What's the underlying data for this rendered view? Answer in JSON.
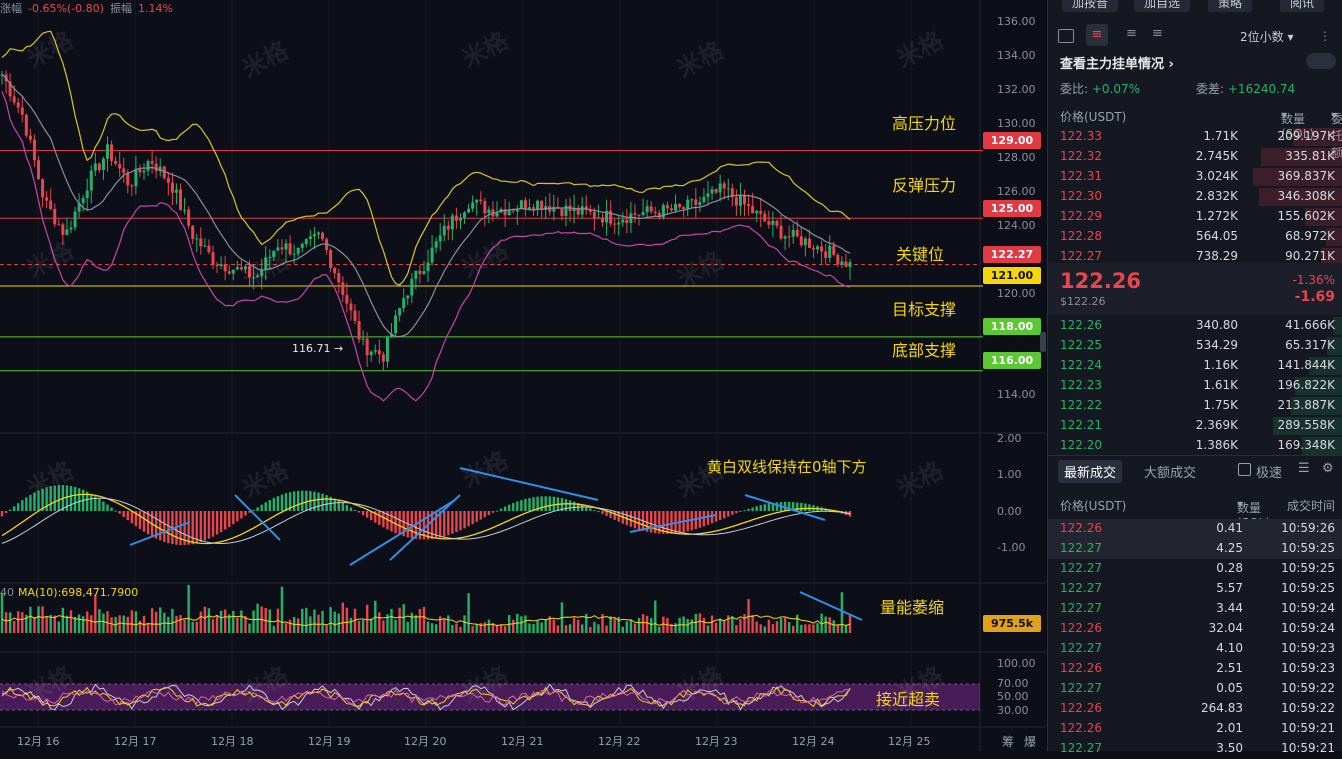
{
  "topbar": {
    "change_label": "涨幅",
    "change_value": "-0.65%(-0.80)",
    "amp_label": "振幅",
    "amp_value": "1.14%"
  },
  "watermark": "米格",
  "price_axis": {
    "ticks": [
      "136.00",
      "134.00",
      "132.00",
      "130.00",
      "128.00",
      "126.00",
      "124.00",
      "120.00",
      "114.00"
    ]
  },
  "levels": [
    {
      "label": "129.00",
      "color": "#e03a44",
      "annotation": "高压力位"
    },
    {
      "label": "125.00",
      "color": "#e03a44",
      "annotation": "反弹压力"
    },
    {
      "label": "122.27",
      "color": "#e03a44",
      "annotation": "关键位"
    },
    {
      "label": "121.00",
      "color": "#f5d60c",
      "annotation": ""
    },
    {
      "label": "118.00",
      "color": "#5ac733",
      "annotation": "目标支撑"
    },
    {
      "label": "116.00",
      "color": "#5ac733",
      "annotation": "底部支撑"
    }
  ],
  "low_marker": "116.71",
  "macd": {
    "ticks": [
      "2.00",
      "1.00",
      "0.00",
      "-1.00"
    ],
    "annotation": "黄白双线保持在0轴下方"
  },
  "volume": {
    "ma_label": "MA(10):698,471.7900",
    "left_tick": "40",
    "annotation": "量能萎缩",
    "current": "975.5k"
  },
  "rsi": {
    "ticks": [
      "100.00",
      "70.00",
      "50.00",
      "30.00"
    ],
    "annotation": "接近超卖"
  },
  "dates": [
    "12月 16",
    "12月 17",
    "12月 18",
    "12月 19",
    "12月 20",
    "12月 21",
    "12月 22",
    "12月 23",
    "12月 24",
    "12月 25"
  ],
  "bottom_icons": {
    "a": "筹",
    "b": "爆"
  },
  "panel": {
    "top_buttons": [
      "加按音",
      "加自选",
      "策略",
      "阅讯"
    ],
    "decimal_select": "2位小数",
    "title": "查看主力挂单情况",
    "ratio_label": "委比:",
    "ratio_value": "+0.07%",
    "diff_label": "委差:",
    "diff_value": "+16240.74",
    "book_headers": [
      "价格(USDT)",
      "数量 (SOL)",
      "委托额"
    ],
    "asks": [
      {
        "p": "122.33",
        "q": "1.71K",
        "v": "209.197K",
        "w": 0.5
      },
      {
        "p": "122.32",
        "q": "2.745K",
        "v": "335.81K",
        "w": 0.82
      },
      {
        "p": "122.31",
        "q": "3.024K",
        "v": "369.837K",
        "w": 0.9
      },
      {
        "p": "122.30",
        "q": "2.832K",
        "v": "346.308K",
        "w": 0.84
      },
      {
        "p": "122.29",
        "q": "1.272K",
        "v": "155.602K",
        "w": 0.38
      },
      {
        "p": "122.28",
        "q": "564.05",
        "v": "68.972K",
        "w": 0.17
      },
      {
        "p": "122.27",
        "q": "738.29",
        "v": "90.271K",
        "w": 0.22
      }
    ],
    "last_price": "122.26",
    "last_usd": "$122.26",
    "last_change_pct": "-1.36%",
    "last_change": "-1.69",
    "bids": [
      {
        "p": "122.26",
        "q": "340.80",
        "v": "41.666K",
        "w": 0.1
      },
      {
        "p": "122.25",
        "q": "534.29",
        "v": "65.317K",
        "w": 0.16
      },
      {
        "p": "122.24",
        "q": "1.16K",
        "v": "141.844K",
        "w": 0.34
      },
      {
        "p": "122.23",
        "q": "1.61K",
        "v": "196.822K",
        "w": 0.48
      },
      {
        "p": "122.22",
        "q": "1.75K",
        "v": "213.887K",
        "w": 0.52
      },
      {
        "p": "122.21",
        "q": "2.369K",
        "v": "289.558K",
        "w": 0.7
      },
      {
        "p": "122.20",
        "q": "1.386K",
        "v": "169.348K",
        "w": 0.41
      }
    ],
    "tabs": [
      "最新成交",
      "大额成交"
    ],
    "speed_label": "极速",
    "trade_headers": [
      "价格(USDT)",
      "数量(SOL)",
      "成交时间"
    ],
    "trades": [
      {
        "p": "122.26",
        "q": "0.41",
        "t": "10:59:26",
        "s": "sell"
      },
      {
        "p": "122.27",
        "q": "4.25",
        "t": "10:59:25",
        "s": "buy"
      },
      {
        "p": "122.27",
        "q": "0.28",
        "t": "10:59:25",
        "s": "buy"
      },
      {
        "p": "122.27",
        "q": "5.57",
        "t": "10:59:25",
        "s": "buy"
      },
      {
        "p": "122.27",
        "q": "3.44",
        "t": "10:59:24",
        "s": "buy"
      },
      {
        "p": "122.26",
        "q": "32.04",
        "t": "10:59:24",
        "s": "sell"
      },
      {
        "p": "122.27",
        "q": "4.10",
        "t": "10:59:23",
        "s": "buy"
      },
      {
        "p": "122.26",
        "q": "2.51",
        "t": "10:59:23",
        "s": "sell"
      },
      {
        "p": "122.27",
        "q": "0.05",
        "t": "10:59:22",
        "s": "buy"
      },
      {
        "p": "122.26",
        "q": "264.83",
        "t": "10:59:22",
        "s": "sell"
      },
      {
        "p": "122.26",
        "q": "2.01",
        "t": "10:59:21",
        "s": "sell"
      },
      {
        "p": "122.27",
        "q": "3.50",
        "t": "10:59:21",
        "s": "buy"
      }
    ]
  },
  "chart_data": {
    "type": "candlestick",
    "title": "",
    "x": [
      "12月 16",
      "12月 17",
      "12月 18",
      "12月 19",
      "12月 20",
      "12月 21",
      "12月 22",
      "12月 23",
      "12月 24",
      "12月 25"
    ],
    "price_range": [
      112.5,
      137
    ],
    "close_path": [
      133.5,
      131,
      126,
      124,
      127,
      129,
      127,
      128.5,
      127,
      124,
      122.5,
      122,
      121.5,
      123.5,
      123,
      124,
      121,
      117.5,
      116.9,
      120.5,
      122.5,
      124.5,
      126,
      125.5,
      125.6,
      126,
      125.7,
      125.4,
      125.2,
      125,
      125.3,
      125.4,
      125.5,
      126,
      126.7,
      125.8,
      124.8,
      124,
      123.6,
      123,
      122.27
    ],
    "horizontal_levels": [
      129.0,
      125.0,
      122.27,
      121.0,
      118.0,
      116.0
    ],
    "low_marker": 116.71,
    "macd_range": [
      -2,
      2
    ],
    "rsi_range": [
      0,
      100
    ],
    "volume_ma10": 698471.79,
    "current_volume": "975.5k"
  }
}
